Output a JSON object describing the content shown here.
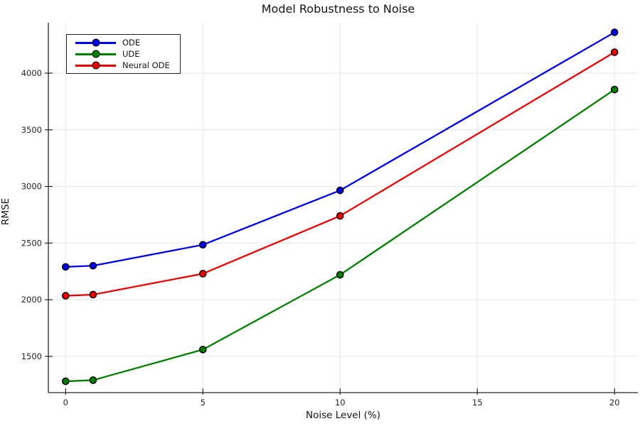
{
  "chart_data": {
    "type": "line",
    "title": "Model Robustness to Noise",
    "xlabel": "Noise Level (%)",
    "ylabel": "RMSE",
    "x": [
      0,
      1,
      5,
      10,
      20
    ],
    "series": [
      {
        "name": "ODE",
        "color": "#0000ee",
        "values": [
          2290,
          2300,
          2485,
          2965,
          4360
        ]
      },
      {
        "name": "UDE",
        "color": "#008000",
        "values": [
          1280,
          1290,
          1560,
          2220,
          3855
        ]
      },
      {
        "name": "Neural ODE",
        "color": "#ee0000",
        "values": [
          2035,
          2045,
          2230,
          2740,
          4185
        ]
      }
    ],
    "xticks": [
      0,
      5,
      10,
      15,
      20
    ],
    "yticks": [
      1500,
      2000,
      2500,
      3000,
      3500,
      4000
    ],
    "xlim": [
      -0.63,
      20.85
    ],
    "ylim": [
      1180,
      4445
    ],
    "grid": true,
    "legend_position": "top-left",
    "colors": {
      "background": "#ffffff",
      "grid": "#e6e6e6",
      "axis": "#262626",
      "tick_label": "#262626",
      "marker_edge": "#000000"
    }
  }
}
